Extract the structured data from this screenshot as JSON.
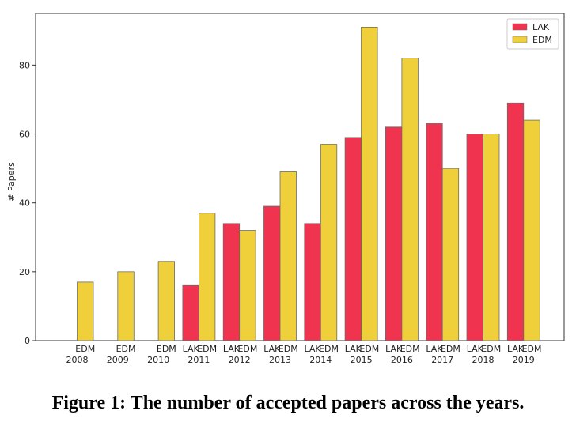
{
  "caption": "Figure 1: The number of accepted papers across the years.",
  "chart_data": {
    "type": "bar",
    "ylabel": "# Papers",
    "ylim": [
      0,
      95
    ],
    "yticks": [
      0,
      20,
      40,
      60,
      80
    ],
    "categories": [
      "2008",
      "2009",
      "2010",
      "2011",
      "2012",
      "2013",
      "2014",
      "2015",
      "2016",
      "2017",
      "2018",
      "2019"
    ],
    "bar_labels": [
      [
        "",
        "EDM"
      ],
      [
        "",
        "EDM"
      ],
      [
        "",
        "EDM"
      ],
      [
        "LAK",
        "EDM"
      ],
      [
        "LAK",
        "EDM"
      ],
      [
        "LAK",
        "EDM"
      ],
      [
        "LAK",
        "EDM"
      ],
      [
        "LAK",
        "EDM"
      ],
      [
        "LAK",
        "EDM"
      ],
      [
        "LAK",
        "EDM"
      ],
      [
        "LAK",
        "EDM"
      ],
      [
        "LAK",
        "EDM"
      ]
    ],
    "series": [
      {
        "name": "LAK",
        "color": "#f0334f",
        "values": [
          null,
          null,
          null,
          16,
          34,
          39,
          34,
          59,
          62,
          63,
          60,
          69
        ]
      },
      {
        "name": "EDM",
        "color": "#f0d03a",
        "values": [
          17,
          20,
          23,
          37,
          32,
          49,
          57,
          91,
          82,
          50,
          60,
          64
        ]
      }
    ],
    "legend": "top-right",
    "grid": false
  }
}
